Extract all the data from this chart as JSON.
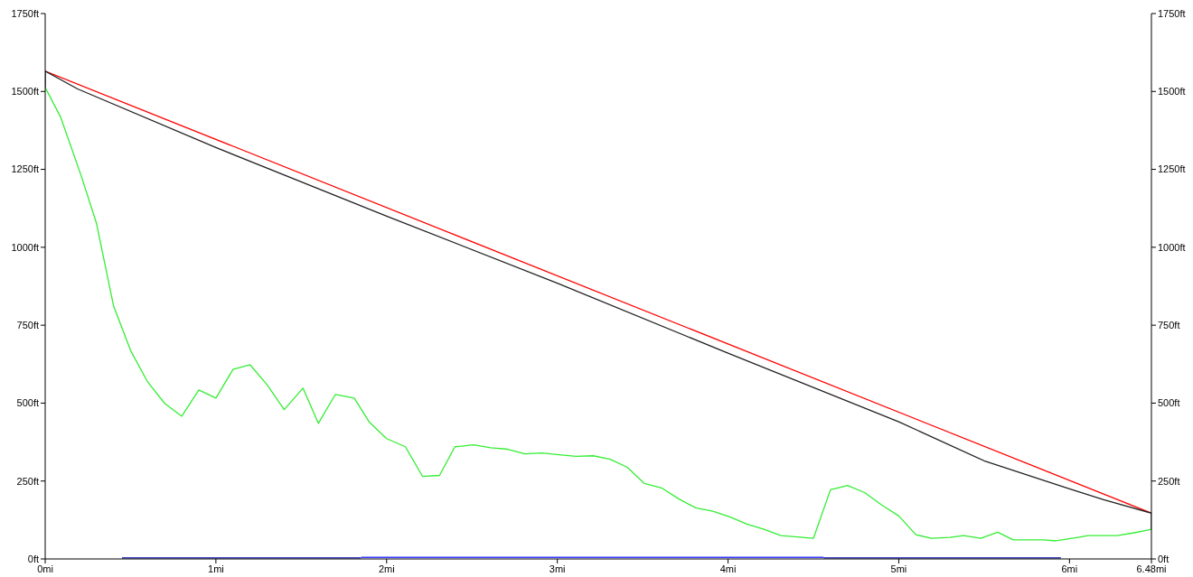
{
  "chart_data": {
    "type": "line",
    "xlim": [
      0,
      6.48
    ],
    "xticks": [
      {
        "value": 0,
        "label": "0mi"
      },
      {
        "value": 1,
        "label": "1mi"
      },
      {
        "value": 2,
        "label": "2mi"
      },
      {
        "value": 3,
        "label": "3mi"
      },
      {
        "value": 4,
        "label": "4mi"
      },
      {
        "value": 5,
        "label": "5mi"
      },
      {
        "value": 6,
        "label": "6mi"
      },
      {
        "value": 6.48,
        "label": "6.48mi"
      }
    ],
    "ylim": [
      0,
      1750
    ],
    "yticks": [
      {
        "value": 0,
        "label": "0ft"
      },
      {
        "value": 250,
        "label": "250ft"
      },
      {
        "value": 500,
        "label": "500ft"
      },
      {
        "value": 750,
        "label": "750ft"
      },
      {
        "value": 1000,
        "label": "1000ft"
      },
      {
        "value": 1250,
        "label": "1250ft"
      },
      {
        "value": 1500,
        "label": "1500ft"
      },
      {
        "value": 1750,
        "label": "1750ft"
      }
    ],
    "y2lim": [
      0,
      1750
    ],
    "y2ticks": [
      {
        "value": 0,
        "label": "0ft"
      },
      {
        "value": 250,
        "label": "250ft"
      },
      {
        "value": 500,
        "label": "500ft"
      },
      {
        "value": 750,
        "label": "750ft"
      },
      {
        "value": 1000,
        "label": "1000ft"
      },
      {
        "value": 1250,
        "label": "1250ft"
      },
      {
        "value": 1500,
        "label": "1500ft"
      },
      {
        "value": 1750,
        "label": "1750ft"
      }
    ],
    "grid": false,
    "marker": "none",
    "line_style": "solid",
    "series": [
      {
        "color": "#33ee33",
        "x": [
          0,
          0.09,
          0.21,
          0.3,
          0.4,
          0.5,
          0.6,
          0.7,
          0.8,
          0.9,
          1,
          1.1,
          1.2,
          1.3,
          1.4,
          1.51,
          1.6,
          1.7,
          1.81,
          1.9,
          2,
          2.11,
          2.21,
          2.31,
          2.4,
          2.51,
          2.61,
          2.71,
          2.81,
          2.91,
          3.01,
          3.11,
          3.21,
          3.31,
          3.41,
          3.51,
          3.61,
          3.71,
          3.81,
          3.91,
          4.01,
          4.11,
          4.21,
          4.31,
          4.5,
          4.6,
          4.7,
          4.8,
          4.9,
          5,
          5.1,
          5.19,
          5.3,
          5.38,
          5.48,
          5.58,
          5.67,
          5.85,
          5.92,
          6.05,
          6.11,
          6.28,
          6.38,
          6.48
        ],
        "values": [
          1513,
          1418,
          1231,
          1078,
          813,
          669,
          568,
          499,
          458,
          542,
          516,
          608,
          623,
          559,
          479,
          548,
          435,
          528,
          516,
          438,
          386,
          360,
          265,
          268,
          360,
          366,
          357,
          352,
          337,
          340,
          334,
          329,
          331,
          320,
          294,
          242,
          228,
          193,
          164,
          153,
          135,
          112,
          95,
          75,
          66,
          222,
          236,
          213,
          173,
          138,
          78,
          66,
          69,
          75,
          66,
          86,
          61,
          61,
          58,
          69,
          75,
          75,
          84,
          95
        ]
      },
      {
        "color": "#ff0000",
        "x": [
          0,
          6.48
        ],
        "values": [
          1565,
          147
        ]
      },
      {
        "color": "#222222",
        "x": [
          0,
          0,
          0.19,
          1,
          2,
          3,
          4,
          5,
          5.5,
          6,
          6.2,
          6.48,
          6.48
        ],
        "values": [
          1513,
          1565,
          1508,
          1320,
          1100,
          885,
          660,
          440,
          315,
          225,
          190,
          147,
          95
        ]
      },
      {
        "color": "#0000aa",
        "x": [
          0.45,
          1.85
        ],
        "values": [
          3,
          3
        ]
      },
      {
        "color": "#0000aa",
        "x": [
          4.56,
          5.95
        ],
        "values": [
          3,
          3
        ]
      },
      {
        "color": "#3a3aff",
        "x": [
          1.85,
          4.56
        ],
        "values": [
          5,
          5
        ]
      }
    ]
  }
}
